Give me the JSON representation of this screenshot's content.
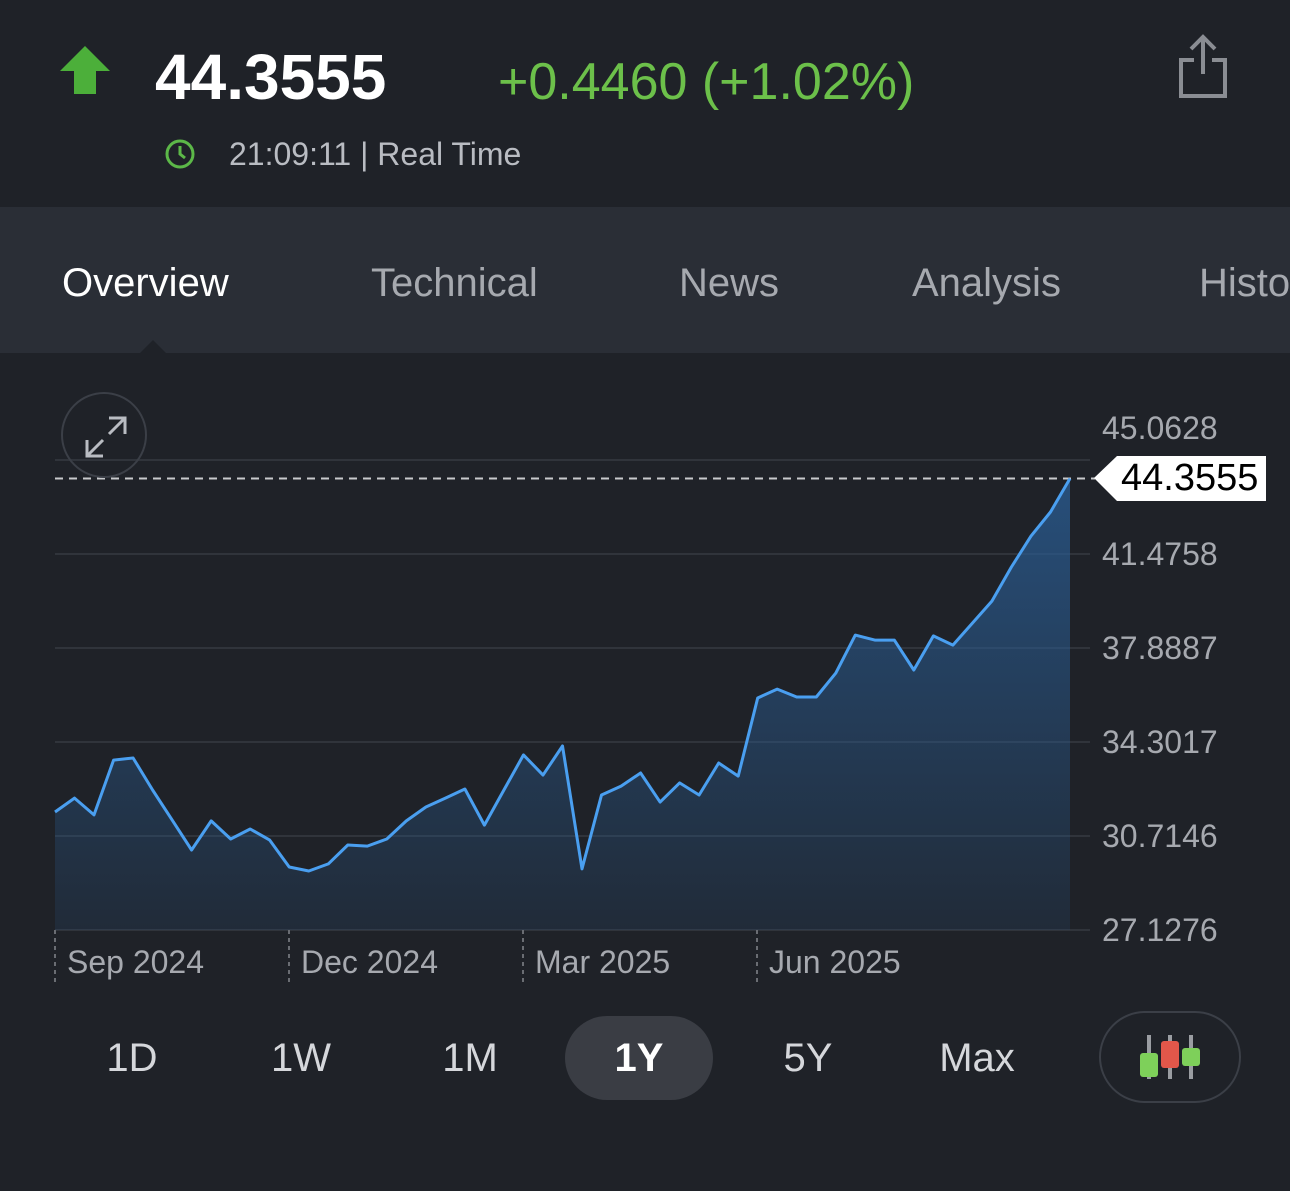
{
  "header": {
    "price": "44.3555",
    "change": "+0.4460 (+1.02%)",
    "time": "21:09:11 | Real Time",
    "direction_icon": "arrow-up-icon",
    "up_color": "#4caf3a"
  },
  "tabs": [
    {
      "label": "Overview",
      "active": true
    },
    {
      "label": "Technical"
    },
    {
      "label": "News"
    },
    {
      "label": "Analysis"
    },
    {
      "label": "Histo"
    }
  ],
  "chart_data": {
    "type": "area",
    "current_price_label": "44.3555",
    "y_ticks": [
      "27.1276",
      "30.7146",
      "34.3017",
      "37.8887",
      "41.4758",
      "45.0628"
    ],
    "ylim": [
      27.1276,
      45.0628
    ],
    "x_ticks": [
      "Sep 2024",
      "Dec 2024",
      "Mar 2025",
      "Jun 2025"
    ],
    "line_color": "#4a9ff0",
    "grid": true,
    "values": [
      31.63,
      32.16,
      31.52,
      33.61,
      33.69,
      32.47,
      31.33,
      30.18,
      31.29,
      30.6,
      30.98,
      30.56,
      29.53,
      29.38,
      29.65,
      30.37,
      30.33,
      30.6,
      31.29,
      31.82,
      32.16,
      32.51,
      31.13,
      32.47,
      33.81,
      33.04,
      34.15,
      29.46,
      32.28,
      32.62,
      33.12,
      32.01,
      32.74,
      32.28,
      33.5,
      33.0,
      35.98,
      36.32,
      36.02,
      36.02,
      36.93,
      38.38,
      38.19,
      38.19,
      37.05,
      38.35,
      38.0,
      38.84,
      39.68,
      40.98,
      42.16,
      43.08,
      44.3555
    ]
  },
  "ranges": [
    {
      "label": "1D"
    },
    {
      "label": "1W"
    },
    {
      "label": "1M"
    },
    {
      "label": "1Y",
      "active": true
    },
    {
      "label": "5Y"
    },
    {
      "label": "Max"
    }
  ]
}
